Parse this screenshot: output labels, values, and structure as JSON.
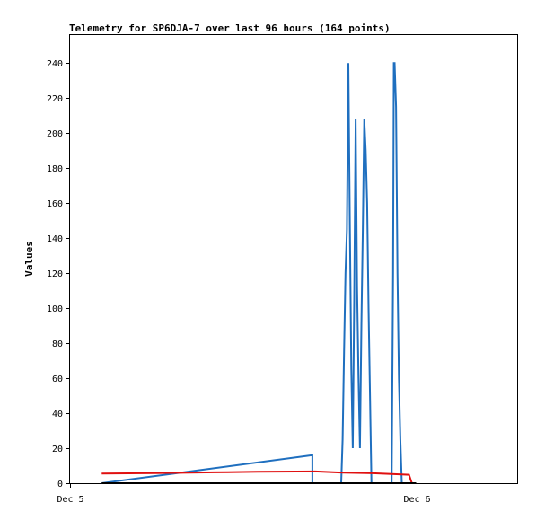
{
  "chart_data": {
    "type": "line",
    "title": "Telemetry for SP6DJA-7 over last 96 hours (164 points)",
    "xlabel": "",
    "ylabel": "Values",
    "ylim": [
      0,
      256
    ],
    "yticks": [
      0,
      20,
      40,
      60,
      80,
      100,
      120,
      140,
      160,
      180,
      200,
      220,
      240
    ],
    "xlim": [
      "Dec 5 00:00",
      "Dec 6 07:00"
    ],
    "xticks": [
      {
        "label": "Dec 5",
        "x": 0
      },
      {
        "label": "Dec 6",
        "x": 24
      }
    ],
    "grid": false,
    "legend": "none",
    "series": [
      {
        "color": "#1f6fbf",
        "points": [
          [
            2.2,
            0
          ],
          [
            16.8,
            16
          ],
          [
            16.8,
            0
          ],
          [
            18.8,
            0
          ],
          [
            18.9,
            25
          ],
          [
            19.0,
            75
          ],
          [
            19.1,
            120
          ],
          [
            19.2,
            145
          ],
          [
            19.3,
            240
          ],
          [
            19.4,
            145
          ],
          [
            19.5,
            65
          ],
          [
            19.6,
            20
          ],
          [
            19.7,
            105
          ],
          [
            19.8,
            208
          ],
          [
            19.9,
            112
          ],
          [
            20.0,
            60
          ],
          [
            20.1,
            20
          ],
          [
            20.2,
            90
          ],
          [
            20.3,
            145
          ],
          [
            20.4,
            208
          ],
          [
            20.5,
            190
          ],
          [
            20.6,
            160
          ],
          [
            20.7,
            100
          ],
          [
            20.8,
            50
          ],
          [
            20.9,
            0
          ],
          [
            22.3,
            0
          ],
          [
            22.4,
            120
          ],
          [
            22.45,
            240
          ],
          [
            22.5,
            240
          ],
          [
            22.6,
            215
          ],
          [
            22.65,
            168
          ],
          [
            22.7,
            120
          ],
          [
            22.8,
            60
          ],
          [
            22.9,
            25
          ],
          [
            23.0,
            0
          ]
        ]
      },
      {
        "color": "#e01010",
        "points": [
          [
            2.2,
            5.5
          ],
          [
            6.0,
            5.8
          ],
          [
            10.0,
            6.2
          ],
          [
            13.0,
            6.5
          ],
          [
            17.0,
            6.7
          ],
          [
            19.0,
            6.0
          ],
          [
            21.0,
            5.7
          ],
          [
            23.0,
            5.0
          ],
          [
            23.5,
            4.8
          ],
          [
            23.7,
            0
          ]
        ]
      },
      {
        "color": "#000000",
        "points": [
          [
            2.2,
            0
          ],
          [
            24.0,
            0
          ]
        ]
      }
    ]
  }
}
